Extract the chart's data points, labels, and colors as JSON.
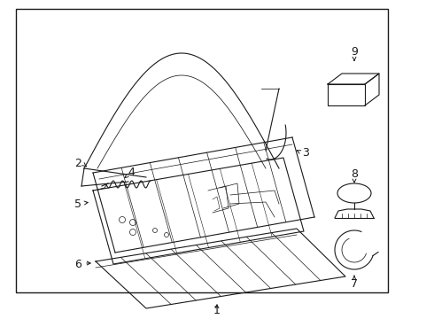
{
  "background_color": "#ffffff",
  "border_color": "#1a1a1a",
  "line_color": "#1a1a1a",
  "label_color": "#000000",
  "border_lw": 1.0,
  "lw": 0.8,
  "tlw": 0.5,
  "label_fs": 9,
  "figsize": [
    4.9,
    3.6
  ],
  "dpi": 100
}
